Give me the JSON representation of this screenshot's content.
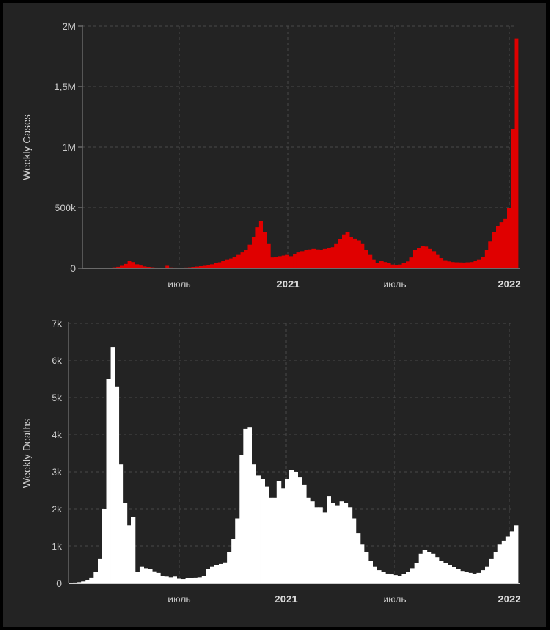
{
  "chart_data": [
    {
      "type": "bar",
      "ylabel": "Weekly Cases",
      "xlabel": "",
      "ylim": [
        0,
        2000000
      ],
      "y_ticks": [
        "0",
        "500k",
        "1M",
        "1,5M",
        "2M"
      ],
      "x_ticks": [
        "июль",
        "2021",
        "июль",
        "2022"
      ],
      "grid": true,
      "color": "#e00000",
      "x_start": "2020-01-20",
      "x_interval": "week",
      "values": [
        200,
        300,
        500,
        700,
        1000,
        1800,
        3000,
        5000,
        8000,
        12000,
        20000,
        35000,
        60000,
        50000,
        32000,
        22000,
        15000,
        11000,
        8000,
        6000,
        5000,
        4000,
        20000,
        7000,
        6000,
        5000,
        5500,
        6500,
        8000,
        11000,
        14000,
        17000,
        20000,
        25000,
        32000,
        40000,
        48000,
        58000,
        70000,
        82000,
        95000,
        110000,
        130000,
        150000,
        195000,
        260000,
        340000,
        390000,
        300000,
        200000,
        90000,
        95000,
        100000,
        105000,
        110000,
        100000,
        115000,
        130000,
        140000,
        150000,
        155000,
        160000,
        155000,
        150000,
        160000,
        165000,
        175000,
        200000,
        240000,
        280000,
        300000,
        260000,
        245000,
        230000,
        200000,
        150000,
        110000,
        70000,
        40000,
        60000,
        50000,
        40000,
        30000,
        25000,
        30000,
        40000,
        55000,
        90000,
        150000,
        170000,
        185000,
        180000,
        160000,
        140000,
        110000,
        85000,
        65000,
        55000,
        50000,
        48000,
        47000,
        46000,
        48000,
        50000,
        58000,
        70000,
        95000,
        150000,
        220000,
        300000,
        350000,
        380000,
        410000,
        500000,
        1150000,
        1900000
      ]
    },
    {
      "type": "bar",
      "ylabel": "Weekly Deaths",
      "xlabel": "",
      "ylim": [
        0,
        7000
      ],
      "y_ticks": [
        "0",
        "1k",
        "2k",
        "3k",
        "4k",
        "5k",
        "6k",
        "7k"
      ],
      "x_ticks": [
        "июль",
        "2021",
        "июль",
        "2022"
      ],
      "grid": true,
      "color": "#ffffff",
      "x_start": "2020-01-20",
      "x_interval": "week",
      "values": [
        10,
        20,
        30,
        50,
        80,
        150,
        300,
        650,
        2000,
        5500,
        6350,
        5300,
        3200,
        2150,
        1550,
        1780,
        300,
        450,
        400,
        380,
        320,
        280,
        200,
        180,
        160,
        180,
        120,
        110,
        130,
        140,
        150,
        160,
        200,
        380,
        450,
        500,
        520,
        560,
        850,
        1200,
        1750,
        3450,
        4150,
        4200,
        3200,
        2900,
        2800,
        2600,
        2300,
        2300,
        2750,
        2550,
        2800,
        3050,
        3000,
        2850,
        2650,
        2300,
        2200,
        2050,
        2050,
        1900,
        2350,
        2150,
        2100,
        2200,
        2150,
        2050,
        1750,
        1350,
        1050,
        850,
        600,
        450,
        350,
        300,
        260,
        240,
        220,
        200,
        250,
        300,
        400,
        550,
        800,
        900,
        850,
        800,
        700,
        600,
        550,
        500,
        430,
        380,
        330,
        300,
        280,
        260,
        280,
        350,
        450,
        650,
        850,
        1050,
        1150,
        1250,
        1400,
        1550
      ]
    }
  ]
}
